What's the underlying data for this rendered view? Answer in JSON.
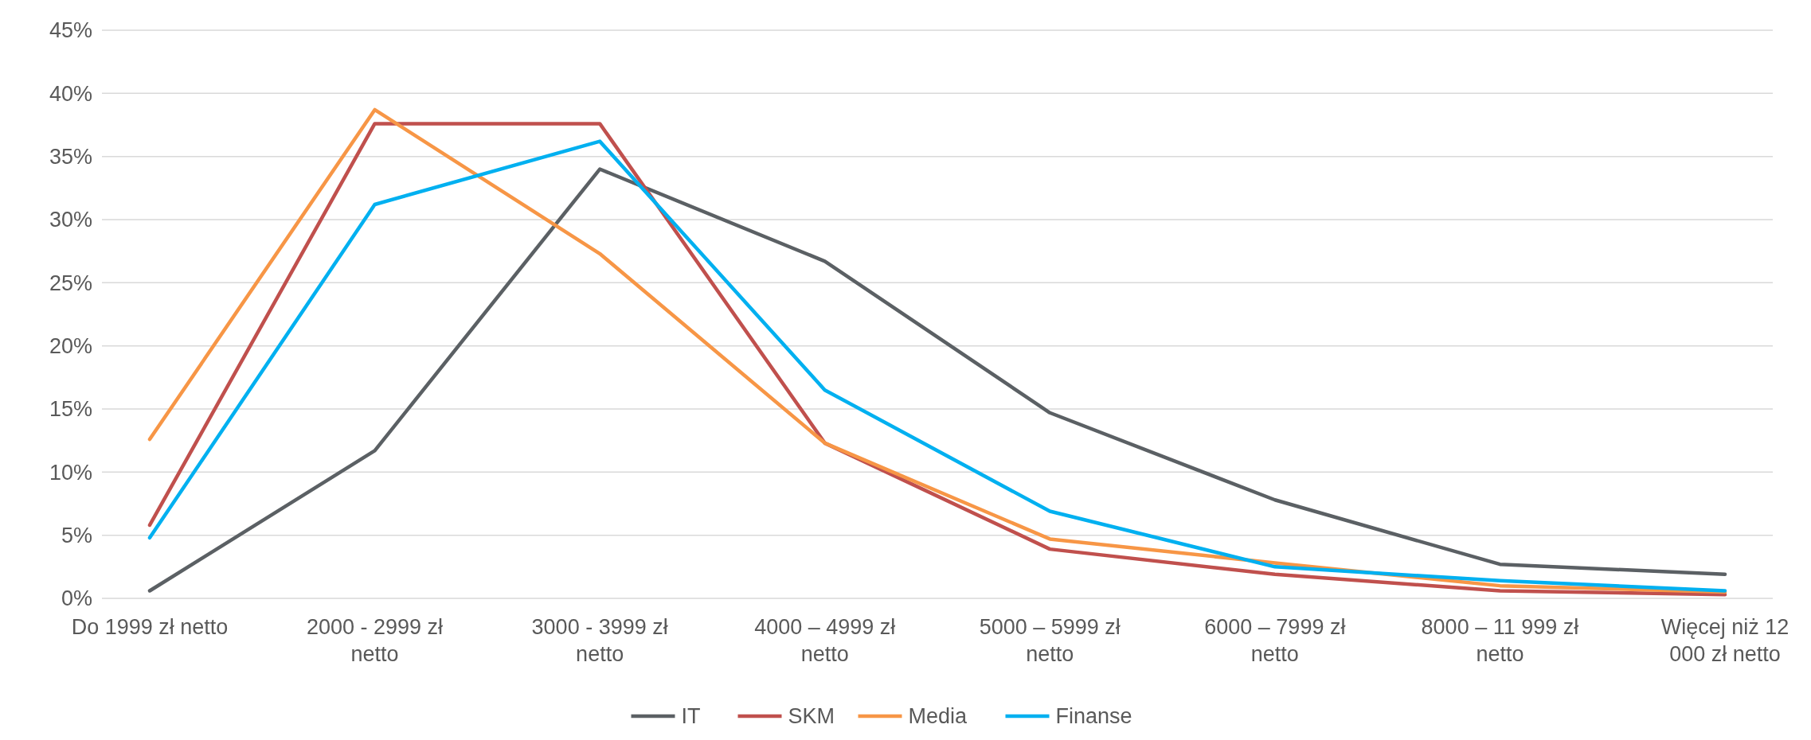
{
  "chart_data": {
    "type": "line",
    "categories": [
      "Do 1999 zł netto",
      "2000 - 2999 zł netto",
      "3000 - 3999 zł netto",
      "4000 – 4999 zł netto",
      "5000 – 5999 zł netto",
      "6000 – 7999 zł netto",
      "8000 – 11 999 zł netto",
      "Więcej niż 12 000 zł netto"
    ],
    "series": [
      {
        "name": "IT",
        "color": "#5b6064",
        "values": [
          0.6,
          11.7,
          34.0,
          26.7,
          14.7,
          7.8,
          2.7,
          1.9
        ]
      },
      {
        "name": "SKM",
        "color": "#c0504d",
        "values": [
          5.8,
          37.6,
          37.6,
          12.3,
          3.9,
          1.9,
          0.6,
          0.3
        ]
      },
      {
        "name": "Media",
        "color": "#f79646",
        "values": [
          12.6,
          38.7,
          27.3,
          12.3,
          4.7,
          2.8,
          1.0,
          0.5
        ]
      },
      {
        "name": "Finanse",
        "color": "#00b0f0",
        "values": [
          4.8,
          31.2,
          36.2,
          16.5,
          6.9,
          2.5,
          1.4,
          0.6
        ]
      }
    ],
    "ylim": [
      0,
      45
    ],
    "yticks": [
      {
        "value": 0,
        "label": "0%"
      },
      {
        "value": 5,
        "label": "5%"
      },
      {
        "value": 10,
        "label": "10%"
      },
      {
        "value": 15,
        "label": "15%"
      },
      {
        "value": 20,
        "label": "20%"
      },
      {
        "value": 25,
        "label": "25%"
      },
      {
        "value": 30,
        "label": "30%"
      },
      {
        "value": 35,
        "label": "35%"
      },
      {
        "value": 40,
        "label": "40%"
      },
      {
        "value": 45,
        "label": "45%"
      }
    ],
    "grid": "y",
    "legend": "bottom",
    "marker": "none",
    "line_style": "solid"
  }
}
